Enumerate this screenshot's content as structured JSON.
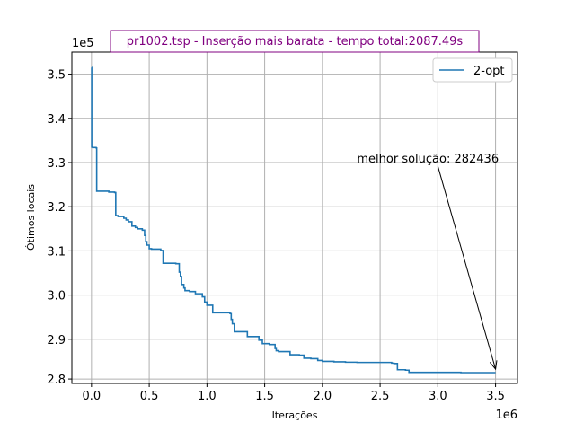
{
  "chart_data": {
    "type": "line",
    "title": "pr1002.tsp - Inserção mais barata - tempo total:2087.49s",
    "title_color": "#800080",
    "xlabel": "Iterações",
    "ylabel": "Ótimos locais",
    "x_offset_label": "1e6",
    "y_offset_label": "1e5",
    "xlim": [
      -170000,
      3690000
    ],
    "ylim": [
      280000,
      355000
    ],
    "x_ticks": [
      0,
      500000,
      1000000,
      1500000,
      2000000,
      2500000,
      3000000,
      3500000
    ],
    "x_tick_labels": [
      "0.0",
      "0.5",
      "1.0",
      "1.5",
      "2.0",
      "2.5",
      "3.0",
      "3.5"
    ],
    "y_ticks": [
      281000,
      290000,
      300000,
      310000,
      320000,
      330000,
      340000,
      350000
    ],
    "y_tick_labels": [
      "2.8",
      "2.9",
      "3.0",
      "3.1",
      "3.2",
      "3.3",
      "3.4",
      "3.5"
    ],
    "grid": true,
    "legend_position": "top-right",
    "series": [
      {
        "name": "2-opt",
        "color": "#1f77b4",
        "x": [
          0,
          2000,
          10000,
          40000,
          45000,
          150000,
          200000,
          210000,
          230000,
          280000,
          300000,
          320000,
          350000,
          380000,
          400000,
          440000,
          460000,
          470000,
          480000,
          500000,
          520000,
          600000,
          620000,
          730000,
          760000,
          770000,
          780000,
          800000,
          810000,
          850000,
          900000,
          960000,
          980000,
          1000000,
          1050000,
          1200000,
          1210000,
          1220000,
          1240000,
          1300000,
          1350000,
          1400000,
          1450000,
          1480000,
          1540000,
          1590000,
          1600000,
          1620000,
          1700000,
          1720000,
          1800000,
          1840000,
          1900000,
          1960000,
          2000000,
          2100000,
          2200000,
          2300000,
          2600000,
          2620000,
          2650000,
          2720000,
          2750000,
          3200000,
          3500000
        ],
        "y": [
          351500,
          333500,
          333400,
          333300,
          323500,
          323300,
          323200,
          318000,
          317800,
          317400,
          317000,
          316600,
          315600,
          315300,
          315000,
          314700,
          313500,
          312100,
          311300,
          310500,
          310400,
          310100,
          307200,
          307100,
          305200,
          304200,
          302400,
          301600,
          301000,
          300800,
          300300,
          299600,
          298400,
          297700,
          296000,
          295800,
          294500,
          293500,
          291700,
          291700,
          290600,
          290600,
          289800,
          289000,
          288800,
          287900,
          287400,
          287200,
          287200,
          286500,
          286400,
          285700,
          285600,
          285200,
          285000,
          284900,
          284800,
          284750,
          284600,
          284500,
          283100,
          283000,
          282500,
          282436,
          282436
        ]
      }
    ],
    "annotations": [
      {
        "text": "melhor solução: 282436",
        "text_x": 2300000,
        "text_y": 330000,
        "arrow_to_x": 3500000,
        "arrow_to_y": 282436
      }
    ]
  }
}
